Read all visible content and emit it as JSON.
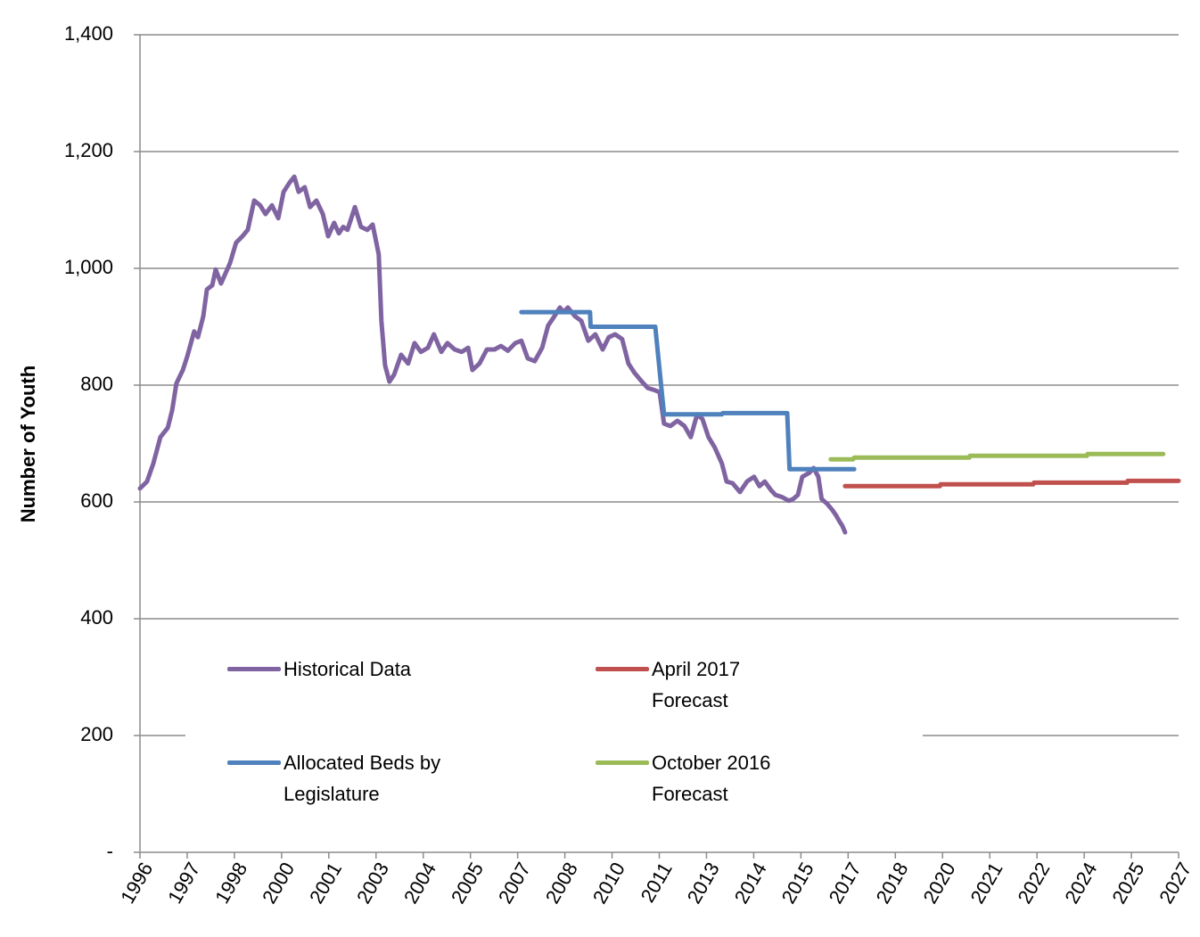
{
  "chart_data": {
    "type": "line",
    "y_label": "Number of Youth",
    "xlim": [
      1996,
      2027.02
    ],
    "xticks": [
      {
        "value": 1996,
        "label": "1996"
      },
      {
        "value": 1997.41,
        "label": "1997"
      },
      {
        "value": 1998.82,
        "label": "1998"
      },
      {
        "value": 2000.23,
        "label": "2000"
      },
      {
        "value": 2001.64,
        "label": "2001"
      },
      {
        "value": 2003.05,
        "label": "2003"
      },
      {
        "value": 2004.46,
        "label": "2004"
      },
      {
        "value": 2005.87,
        "label": "2005"
      },
      {
        "value": 2007.28,
        "label": "2007"
      },
      {
        "value": 2008.69,
        "label": "2008"
      },
      {
        "value": 2010.1,
        "label": "2010"
      },
      {
        "value": 2011.51,
        "label": "2011"
      },
      {
        "value": 2012.92,
        "label": "2013"
      },
      {
        "value": 2014.33,
        "label": "2014"
      },
      {
        "value": 2015.74,
        "label": "2015"
      },
      {
        "value": 2017.15,
        "label": "2017"
      },
      {
        "value": 2018.56,
        "label": "2018"
      },
      {
        "value": 2019.97,
        "label": "2020"
      },
      {
        "value": 2021.38,
        "label": "2021"
      },
      {
        "value": 2022.79,
        "label": "2022"
      },
      {
        "value": 2024.2,
        "label": "2024"
      },
      {
        "value": 2025.61,
        "label": "2025"
      },
      {
        "value": 2027.02,
        "label": "2027"
      }
    ],
    "ylim": [
      0,
      1400
    ],
    "yticks": [
      {
        "value": 0,
        "label": "-"
      },
      200,
      400,
      600,
      800,
      {
        "value": 1000,
        "label": "1,000"
      },
      {
        "value": 1200,
        "label": "1,200"
      },
      {
        "value": 1400,
        "label": "1,400"
      }
    ],
    "grid": true,
    "series": [
      {
        "name": "Historical Data",
        "color": "#8064a2",
        "x": [
          1996.0,
          1996.21,
          1996.4,
          1996.61,
          1996.83,
          1996.96,
          1997.09,
          1997.28,
          1997.41,
          1997.62,
          1997.73,
          1997.89,
          1998.0,
          1998.16,
          1998.26,
          1998.42,
          1998.69,
          1998.87,
          1999.06,
          1999.22,
          1999.41,
          1999.59,
          1999.75,
          1999.94,
          2000.13,
          2000.29,
          2000.47,
          2000.61,
          2000.74,
          2000.92,
          2001.08,
          2001.27,
          2001.46,
          2001.62,
          2001.8,
          2001.94,
          2002.07,
          2002.2,
          2002.42,
          2002.6,
          2002.79,
          2002.95,
          2003.13,
          2003.21,
          2003.32,
          2003.45,
          2003.59,
          2003.8,
          2004.01,
          2004.2,
          2004.39,
          2004.6,
          2004.78,
          2005.0,
          2005.18,
          2005.4,
          2005.61,
          2005.8,
          2005.93,
          2006.14,
          2006.36,
          2006.59,
          2006.78,
          2006.99,
          2007.21,
          2007.39,
          2007.58,
          2007.79,
          2008.01,
          2008.19,
          2008.38,
          2008.54,
          2008.65,
          2008.78,
          2008.99,
          2009.18,
          2009.39,
          2009.6,
          2009.82,
          2010.0,
          2010.19,
          2010.4,
          2010.59,
          2010.77,
          2010.99,
          2011.17,
          2011.39,
          2011.52,
          2011.65,
          2011.84,
          2012.05,
          2012.26,
          2012.45,
          2012.64,
          2012.8,
          2012.98,
          2013.17,
          2013.38,
          2013.52,
          2013.7,
          2013.92,
          2014.13,
          2014.34,
          2014.5,
          2014.66,
          2014.85,
          2014.98,
          2015.19,
          2015.38,
          2015.51,
          2015.65,
          2015.78,
          2015.99,
          2016.12,
          2016.26,
          2016.36,
          2016.52,
          2016.68,
          2016.79,
          2016.9,
          2016.98,
          2017.06
        ],
        "values": [
          623,
          635,
          666,
          711,
          727,
          757,
          803,
          826,
          849,
          892,
          882,
          918,
          964,
          971,
          998,
          974,
          1009,
          1044,
          1055,
          1066,
          1116,
          1108,
          1093,
          1108,
          1086,
          1131,
          1147,
          1157,
          1131,
          1139,
          1105,
          1116,
          1093,
          1055,
          1078,
          1060,
          1071,
          1066,
          1105,
          1071,
          1066,
          1075,
          1024,
          910,
          834,
          806,
          818,
          852,
          837,
          872,
          857,
          864,
          887,
          857,
          872,
          861,
          857,
          864,
          826,
          837,
          861,
          861,
          867,
          859,
          872,
          876,
          846,
          841,
          864,
          902,
          918,
          933,
          925,
          933,
          918,
          910,
          876,
          887,
          861,
          882,
          887,
          879,
          837,
          821,
          806,
          795,
          791,
          788,
          734,
          730,
          739,
          730,
          711,
          750,
          742,
          711,
          693,
          666,
          635,
          632,
          617,
          635,
          643,
          627,
          635,
          620,
          612,
          608,
          602,
          605,
          612,
          643,
          650,
          658,
          643,
          605,
          597,
          586,
          577,
          566,
          559,
          548
        ]
      },
      {
        "name": "Allocated Beds by Legislature",
        "color": "#4f81bd",
        "x": [
          2007.39,
          2009.44,
          2009.46,
          2011.39,
          2011.65,
          2013.38,
          2013.4,
          2015.33,
          2015.4,
          2017.33
        ],
        "values": [
          925,
          925,
          900,
          900,
          750,
          750,
          752,
          752,
          656,
          656
        ]
      },
      {
        "name": "April 2017 Forecast",
        "color": "#c0504d",
        "x": [
          2017.06,
          2019.89,
          2019.91,
          2022.68,
          2022.7,
          2025.48,
          2025.5,
          2027.02
        ],
        "values": [
          627,
          627,
          630,
          630,
          633,
          633,
          636,
          636
        ]
      },
      {
        "name": "October 2016 Forecast",
        "color": "#9bbb59",
        "x": [
          2016.63,
          2017.3,
          2017.33,
          2020.77,
          2020.79,
          2024.28,
          2024.3,
          2026.56
        ],
        "values": [
          673,
          673,
          676,
          676,
          679,
          679,
          682,
          682
        ]
      }
    ]
  }
}
